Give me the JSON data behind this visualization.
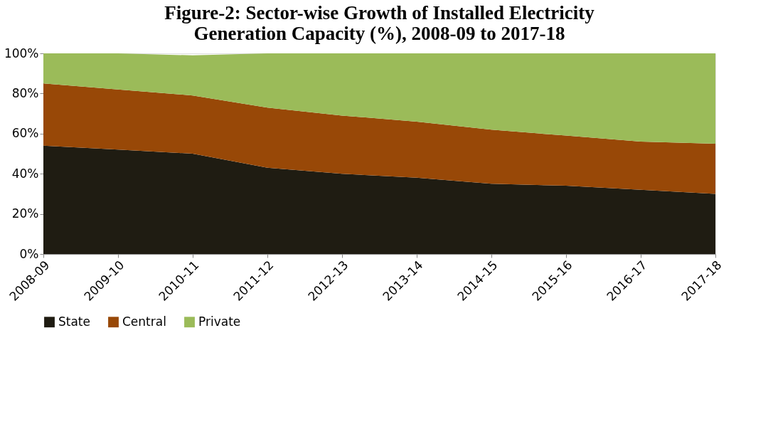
{
  "chart_data": {
    "type": "area",
    "stacked": true,
    "title": "Figure-2: Sector-wise Growth of Installed Electricity Generation Capacity (%), 2008-09 to 2017-18",
    "categories": [
      "2008-09",
      "2009-10",
      "2010-11",
      "2011-12",
      "2012-13",
      "2013-14",
      "2014-15",
      "2015-16",
      "2016-17",
      "2017-18"
    ],
    "series": [
      {
        "name": "State",
        "color": "#1f1c12",
        "values": [
          54,
          52,
          50,
          43,
          40,
          38,
          35,
          34,
          32,
          30
        ]
      },
      {
        "name": "Central",
        "color": "#984807",
        "values": [
          31,
          30,
          29,
          30,
          29,
          28,
          27,
          25,
          24,
          25
        ]
      },
      {
        "name": "Private",
        "color": "#9bbb59",
        "values": [
          15,
          18,
          20,
          27,
          31,
          34,
          38,
          41,
          44,
          45
        ]
      }
    ],
    "ylim": [
      0,
      100
    ],
    "yticks": [
      {
        "value": 0,
        "label": "0%"
      },
      {
        "value": 20,
        "label": "20%"
      },
      {
        "value": 40,
        "label": "40%"
      },
      {
        "value": 60,
        "label": "60%"
      },
      {
        "value": 80,
        "label": "80%"
      },
      {
        "value": 100,
        "label": "100%"
      }
    ],
    "grid": false,
    "legend": "bottom"
  }
}
